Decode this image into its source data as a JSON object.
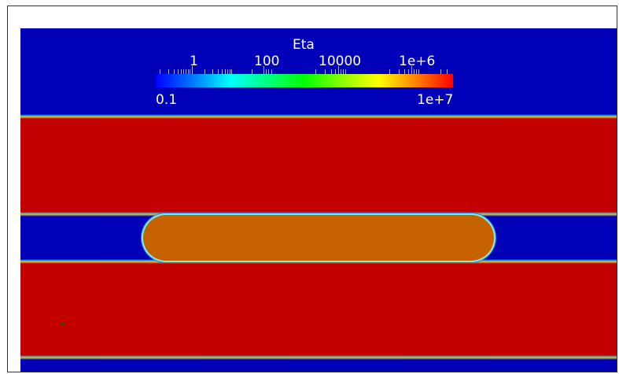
{
  "legend": {
    "title": "Eta",
    "ticks": [
      "1",
      "100",
      "10000",
      "1e+6"
    ],
    "min": "0.1",
    "max": "1e+7",
    "scale": "log",
    "colormap": [
      "#0000ff",
      "#00ffff",
      "#00ff00",
      "#ffff00",
      "#ff0000"
    ]
  },
  "field": {
    "background_color": "#0000b8",
    "high_viscosity_color": "#c30000",
    "inclusion_color": "#c66200"
  }
}
